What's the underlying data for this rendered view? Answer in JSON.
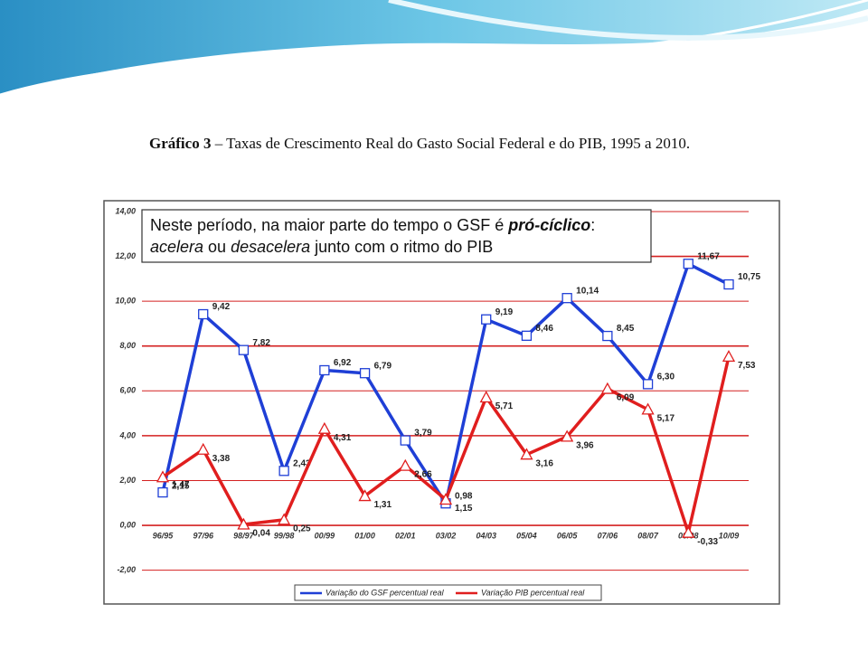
{
  "chart_data": {
    "type": "line",
    "title": "Gráfico 3",
    "subtitle": "– Taxas de Crescimento Real do Gasto Social Federal e do PIB, 1995 a 2010.",
    "annotation": [
      [
        {
          "text": "Neste período, na maior parte do tempo o GSF é "
        },
        {
          "text": "pró-cíclico",
          "style": "bold-italic"
        },
        {
          "text": ":"
        }
      ],
      [
        {
          "text": "acelera",
          "style": "italic"
        },
        {
          "text": " ou "
        },
        {
          "text": "desacelera",
          "style": "italic"
        },
        {
          "text": " junto com o ritmo do PIB"
        }
      ]
    ],
    "categories": [
      "96/95",
      "97/96",
      "98/97",
      "99/98",
      "00/99",
      "01/00",
      "02/01",
      "03/02",
      "04/03",
      "05/04",
      "06/05",
      "07/06",
      "08/07",
      "09/08",
      "10/09"
    ],
    "series": [
      {
        "name": "Variação do GSF percentual real",
        "color": "#1f3fd6",
        "marker": "square",
        "values": [
          1.47,
          9.42,
          7.82,
          2.43,
          6.92,
          6.79,
          3.79,
          0.98,
          9.19,
          8.46,
          10.14,
          8.45,
          6.3,
          11.67,
          10.75
        ],
        "value_labels": [
          "1,47",
          "9,42",
          "7,82",
          "2,43",
          "6,92",
          "6,79",
          "3,79",
          "0,98",
          "9,19",
          "8,46",
          "10,14",
          "8,45",
          "6,30",
          "11,67",
          "10,75"
        ]
      },
      {
        "name": "Variação PIB percentual real",
        "color": "#e01e1e",
        "marker": "triangle",
        "values": [
          2.15,
          3.38,
          0.04,
          0.25,
          4.31,
          1.31,
          2.66,
          1.15,
          5.71,
          3.16,
          3.96,
          6.09,
          5.17,
          -0.33,
          7.53
        ],
        "value_labels": [
          "2,15",
          "3,38",
          "0,04",
          "0,25",
          "4,31",
          "1,31",
          "2,66",
          "1,15",
          "5,71",
          "3,16",
          "3,96",
          "6,09",
          "5,17",
          "-0,33",
          "7,53"
        ]
      }
    ],
    "ylim": [
      -2,
      14
    ],
    "yticks": [
      {
        "value": -2,
        "label": "-2,00"
      },
      {
        "value": 0,
        "label": "0,00"
      },
      {
        "value": 2,
        "label": "2,00"
      },
      {
        "value": 4,
        "label": "4,00"
      },
      {
        "value": 6,
        "label": "6,00"
      },
      {
        "value": 8,
        "label": "8,00"
      },
      {
        "value": 10,
        "label": "10,00"
      },
      {
        "value": 12,
        "label": "12,00"
      },
      {
        "value": 14,
        "label": "14,00"
      }
    ],
    "grid": true,
    "grid_color": "#d42020",
    "legend": "bottom"
  }
}
